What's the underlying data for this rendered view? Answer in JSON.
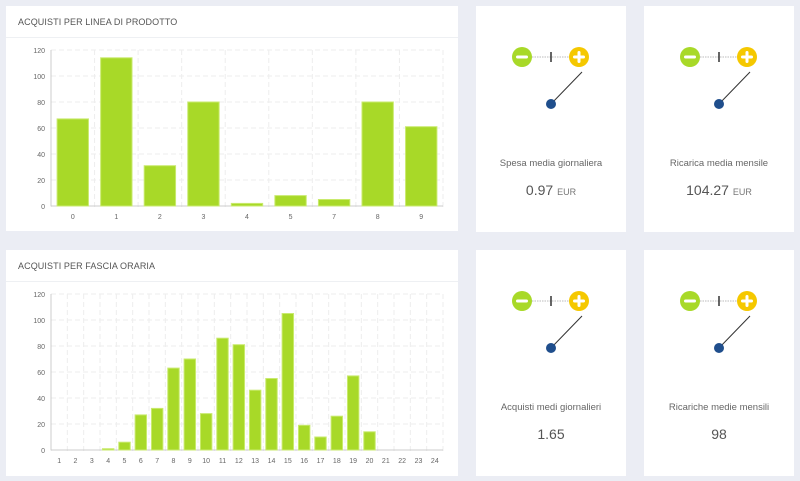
{
  "colors": {
    "bar": "#a8d928",
    "bar_border": "#c9ea6e",
    "minus": "#a8d928",
    "plus": "#f5c800",
    "needle": "#1f4e8c"
  },
  "panels": [
    {
      "title": "ACQUISTI PER LINEA DI PRODOTTO"
    },
    {
      "title": "ACQUISTI PER FASCIA ORARIA"
    }
  ],
  "chart_data": [
    {
      "type": "bar",
      "title": "ACQUISTI PER LINEA DI PRODOTTO",
      "categories": [
        "0",
        "1",
        "2",
        "3",
        "4",
        "5",
        "7",
        "8",
        "9"
      ],
      "values": [
        67,
        114,
        31,
        80,
        2,
        8,
        5,
        80,
        61
      ],
      "ylim": [
        0,
        120
      ],
      "yticks": [
        0,
        20,
        40,
        60,
        80,
        100,
        120
      ],
      "grid": true
    },
    {
      "type": "bar",
      "title": "ACQUISTI PER FASCIA ORARIA",
      "categories": [
        "1",
        "2",
        "3",
        "4",
        "5",
        "6",
        "7",
        "8",
        "9",
        "10",
        "11",
        "12",
        "13",
        "14",
        "15",
        "16",
        "17",
        "18",
        "19",
        "20",
        "21",
        "22",
        "23",
        "24"
      ],
      "values": [
        0,
        0,
        0,
        1,
        6,
        27,
        32,
        63,
        70,
        28,
        86,
        81,
        46,
        55,
        105,
        19,
        10,
        26,
        57,
        14,
        0,
        0,
        0,
        0
      ],
      "ylim": [
        0,
        120
      ],
      "yticks": [
        0,
        20,
        40,
        60,
        80,
        100,
        120
      ],
      "grid": true
    }
  ],
  "cards": [
    {
      "label": "Spesa media giornaliera",
      "value": "0.97",
      "unit": "EUR"
    },
    {
      "label": "Ricarica media mensile",
      "value": "104.27",
      "unit": "EUR"
    },
    {
      "label": "Acquisti medi giornalieri",
      "value": "1.65",
      "unit": ""
    },
    {
      "label": "Ricariche medie mensili",
      "value": "98",
      "unit": ""
    }
  ]
}
